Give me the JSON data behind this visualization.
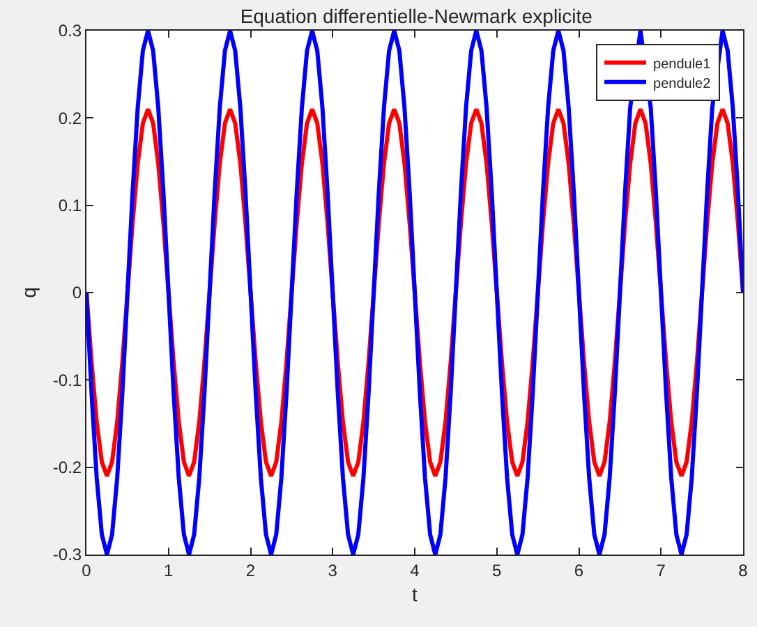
{
  "chart_data": {
    "type": "line",
    "title": "Equation differentielle-Newmark explicite",
    "xlabel": "t",
    "ylabel": "q",
    "x": [
      0,
      0.0625,
      0.125,
      0.1875,
      0.25,
      0.3125,
      0.375,
      0.4375,
      0.5,
      0.5625,
      0.625,
      0.6875,
      0.75,
      0.8125,
      0.875,
      0.9375,
      1,
      1.0625,
      1.125,
      1.1875,
      1.25,
      1.3125,
      1.375,
      1.4375,
      1.5,
      1.5625,
      1.625,
      1.6875,
      1.75,
      1.8125,
      1.875,
      1.9375,
      2,
      2.0625,
      2.125,
      2.1875,
      2.25,
      2.3125,
      2.375,
      2.4375,
      2.5,
      2.5625,
      2.625,
      2.6875,
      2.75,
      2.8125,
      2.875,
      2.9375,
      3,
      3.0625,
      3.125,
      3.1875,
      3.25,
      3.3125,
      3.375,
      3.4375,
      3.5,
      3.5625,
      3.625,
      3.6875,
      3.75,
      3.8125,
      3.875,
      3.9375,
      4,
      4.0625,
      4.125,
      4.1875,
      4.25,
      4.3125,
      4.375,
      4.4375,
      4.5,
      4.5625,
      4.625,
      4.6875,
      4.75,
      4.8125,
      4.875,
      4.9375,
      5,
      5.0625,
      5.125,
      5.1875,
      5.25,
      5.3125,
      5.375,
      5.4375,
      5.5,
      5.5625,
      5.625,
      5.6875,
      5.75,
      5.8125,
      5.875,
      5.9375,
      6,
      6.0625,
      6.125,
      6.1875,
      6.25,
      6.3125,
      6.375,
      6.4375,
      6.5,
      6.5625,
      6.625,
      6.6875,
      6.75,
      6.8125,
      6.875,
      6.9375,
      7,
      7.0625,
      7.125,
      7.1875,
      7.25,
      7.3125,
      7.375,
      7.4375,
      7.5,
      7.5625,
      7.625,
      7.6875,
      7.75,
      7.8125,
      7.875,
      7.9375,
      8
    ],
    "series": [
      {
        "name": "pendule1",
        "color": "#ff0000",
        "values": [
          0,
          -0.08,
          -0.148,
          -0.194,
          -0.21,
          -0.194,
          -0.148,
          -0.08,
          0,
          0.08,
          0.148,
          0.194,
          0.21,
          0.194,
          0.148,
          0.08,
          0,
          -0.08,
          -0.148,
          -0.194,
          -0.21,
          -0.194,
          -0.148,
          -0.08,
          0,
          0.08,
          0.148,
          0.194,
          0.21,
          0.194,
          0.148,
          0.08,
          0,
          -0.08,
          -0.148,
          -0.194,
          -0.21,
          -0.194,
          -0.148,
          -0.08,
          0,
          0.08,
          0.148,
          0.194,
          0.21,
          0.194,
          0.148,
          0.08,
          0,
          -0.08,
          -0.148,
          -0.194,
          -0.21,
          -0.194,
          -0.148,
          -0.08,
          0,
          0.08,
          0.148,
          0.194,
          0.21,
          0.194,
          0.148,
          0.08,
          0,
          -0.08,
          -0.148,
          -0.194,
          -0.21,
          -0.194,
          -0.148,
          -0.08,
          0,
          0.08,
          0.148,
          0.194,
          0.21,
          0.194,
          0.148,
          0.08,
          0,
          -0.08,
          -0.148,
          -0.194,
          -0.21,
          -0.194,
          -0.148,
          -0.08,
          0,
          0.08,
          0.148,
          0.194,
          0.21,
          0.194,
          0.148,
          0.08,
          0,
          -0.08,
          -0.148,
          -0.194,
          -0.21,
          -0.194,
          -0.148,
          -0.08,
          0,
          0.08,
          0.148,
          0.194,
          0.21,
          0.194,
          0.148,
          0.08,
          0,
          -0.08,
          -0.148,
          -0.194,
          -0.21,
          -0.194,
          -0.148,
          -0.08,
          0,
          0.08,
          0.148,
          0.194,
          0.21,
          0.194,
          0.148,
          0.08,
          0
        ]
      },
      {
        "name": "pendule2",
        "color": "#0000ff",
        "values": [
          0,
          -0.115,
          -0.212,
          -0.277,
          -0.3,
          -0.277,
          -0.212,
          -0.115,
          0,
          0.115,
          0.212,
          0.277,
          0.3,
          0.277,
          0.212,
          0.115,
          0,
          -0.115,
          -0.212,
          -0.277,
          -0.3,
          -0.277,
          -0.212,
          -0.115,
          0,
          0.115,
          0.212,
          0.277,
          0.3,
          0.277,
          0.212,
          0.115,
          0,
          -0.115,
          -0.212,
          -0.277,
          -0.3,
          -0.277,
          -0.212,
          -0.115,
          0,
          0.115,
          0.212,
          0.277,
          0.3,
          0.277,
          0.212,
          0.115,
          0,
          -0.115,
          -0.212,
          -0.277,
          -0.3,
          -0.277,
          -0.212,
          -0.115,
          0,
          0.115,
          0.212,
          0.277,
          0.3,
          0.277,
          0.212,
          0.115,
          0,
          -0.115,
          -0.212,
          -0.277,
          -0.3,
          -0.277,
          -0.212,
          -0.115,
          0,
          0.115,
          0.212,
          0.277,
          0.3,
          0.277,
          0.212,
          0.115,
          0,
          -0.115,
          -0.212,
          -0.277,
          -0.3,
          -0.277,
          -0.212,
          -0.115,
          0,
          0.115,
          0.212,
          0.277,
          0.3,
          0.277,
          0.212,
          0.115,
          0,
          -0.115,
          -0.212,
          -0.277,
          -0.3,
          -0.277,
          -0.212,
          -0.115,
          0,
          0.115,
          0.212,
          null,
          0.3,
          null,
          0.212,
          0.115,
          0,
          -0.115,
          -0.212,
          -0.277,
          -0.3,
          -0.277,
          -0.212,
          -0.115,
          0,
          0.115,
          0.212,
          null,
          0.3,
          0.277,
          0.212,
          0.115,
          0
        ]
      }
    ],
    "xlim": [
      0,
      8
    ],
    "xticks": [
      0,
      1,
      2,
      3,
      4,
      5,
      6,
      7,
      8
    ],
    "ylim": [
      -0.3,
      0.3
    ],
    "yticks": [
      -0.3,
      -0.2,
      -0.1,
      0,
      0.1,
      0.2,
      0.3
    ],
    "grid": false,
    "legend": "top right",
    "marker": "none",
    "line_style": "solid"
  }
}
